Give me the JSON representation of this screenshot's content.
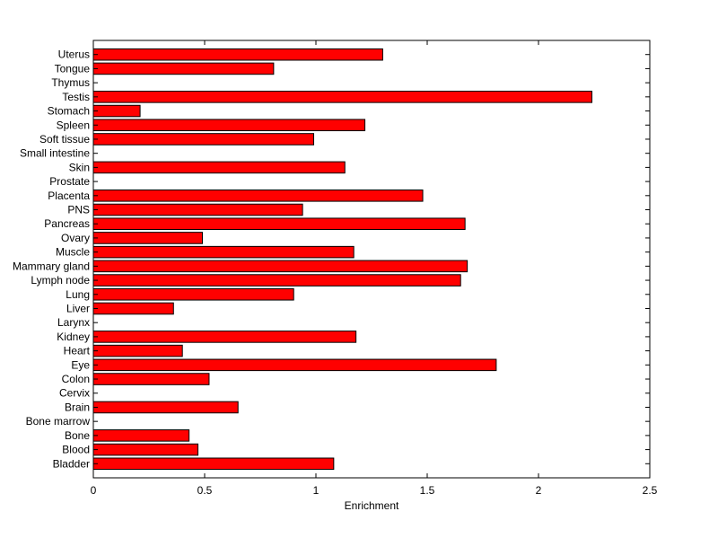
{
  "chart_data": {
    "type": "bar",
    "orientation": "horizontal",
    "categories": [
      "Bladder",
      "Blood",
      "Bone",
      "Bone marrow",
      "Brain",
      "Cervix",
      "Colon",
      "Eye",
      "Heart",
      "Kidney",
      "Larynx",
      "Liver",
      "Lung",
      "Lymph node",
      "Mammary gland",
      "Muscle",
      "Ovary",
      "Pancreas",
      "PNS",
      "Placenta",
      "Prostate",
      "Skin",
      "Small intestine",
      "Soft tissue",
      "Spleen",
      "Stomach",
      "Testis",
      "Thymus",
      "Tongue",
      "Uterus"
    ],
    "values": [
      1.08,
      0.47,
      0.43,
      0,
      0.65,
      0,
      0.52,
      1.81,
      0.4,
      1.18,
      0,
      0.36,
      0.9,
      1.65,
      1.68,
      1.17,
      0.49,
      1.67,
      0.94,
      1.48,
      0,
      1.13,
      0,
      0.99,
      1.22,
      0.21,
      2.24,
      0,
      0.81,
      1.3
    ],
    "title": "",
    "xlabel": "Enrichment",
    "ylabel": "",
    "xlim": [
      0,
      2.5
    ],
    "xticks": [
      "0",
      "0.5",
      "1",
      "1.5",
      "2",
      "2.5"
    ],
    "bar_color": "#ff0000",
    "grid": false,
    "legend": "none"
  }
}
